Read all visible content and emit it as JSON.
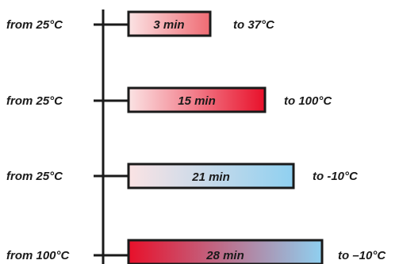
{
  "rows": [
    {
      "from": "from 25°C",
      "duration": "3 min",
      "to": "to 37°C",
      "minutes": 3,
      "start_color": "#fbe3e4",
      "end_color": "#ef6b73"
    },
    {
      "from": "from 25°C",
      "duration": "15 min",
      "to": "to 100°C",
      "minutes": 15,
      "start_color": "#fbe3e4",
      "end_color": "#e8102a"
    },
    {
      "from": "from 25°C",
      "duration": "21 min",
      "to": "to -10°C",
      "minutes": 21,
      "start_color": "#fbe3e4",
      "end_color": "#8fd0f0"
    },
    {
      "from": "from 100°C",
      "duration": "28 min",
      "to": "to –10°C",
      "minutes": 28,
      "start_color": "#e8102a",
      "end_color": "#8fd0f0"
    }
  ],
  "colors": {
    "stroke": "#1a1a1a",
    "text": "#1a1a1a"
  }
}
